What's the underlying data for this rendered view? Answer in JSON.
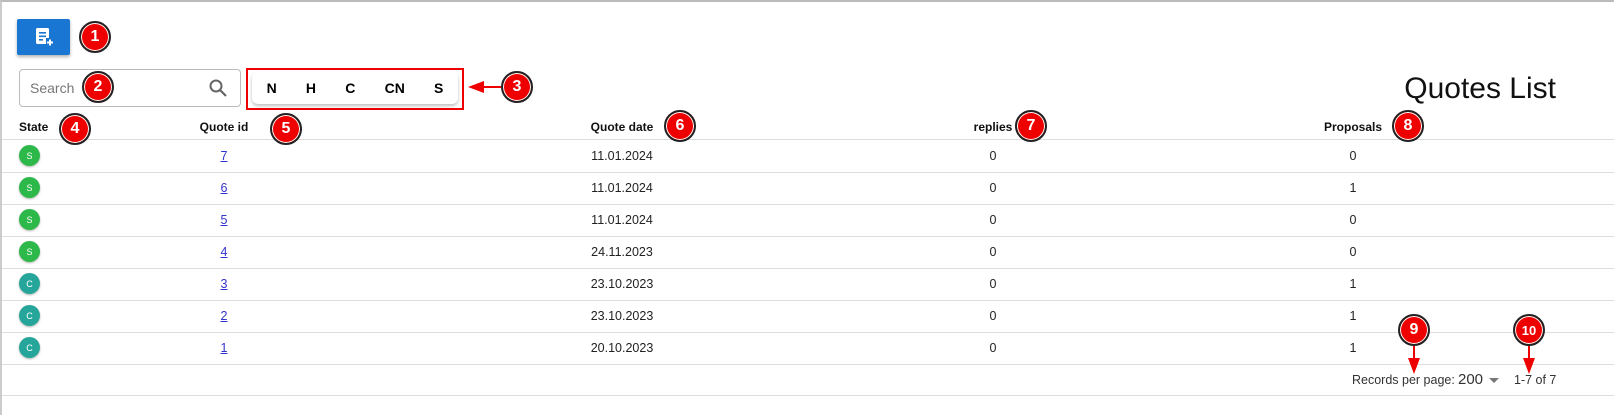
{
  "toolbar": {
    "add_icon": "note-add-icon"
  },
  "search": {
    "placeholder": "Search",
    "icon": "search-icon"
  },
  "filters": [
    "N",
    "H",
    "C",
    "CN",
    "S"
  ],
  "page_title": "Quotes List",
  "columns": [
    "State",
    "Quote id",
    "Quote date",
    "replies",
    "Proposals"
  ],
  "rows": [
    {
      "state": "S",
      "id": "7",
      "date": "11.01.2024",
      "replies": "0",
      "proposals": "0"
    },
    {
      "state": "S",
      "id": "6",
      "date": "11.01.2024",
      "replies": "0",
      "proposals": "1"
    },
    {
      "state": "S",
      "id": "5",
      "date": "11.01.2024",
      "replies": "0",
      "proposals": "0"
    },
    {
      "state": "S",
      "id": "4",
      "date": "24.11.2023",
      "replies": "0",
      "proposals": "0"
    },
    {
      "state": "C",
      "id": "3",
      "date": "23.10.2023",
      "replies": "0",
      "proposals": "1"
    },
    {
      "state": "C",
      "id": "2",
      "date": "23.10.2023",
      "replies": "0",
      "proposals": "1"
    },
    {
      "state": "C",
      "id": "1",
      "date": "20.10.2023",
      "replies": "0",
      "proposals": "1"
    }
  ],
  "state_colors": {
    "S": "#2db84a",
    "C": "#26a69a"
  },
  "footer": {
    "records_label": "Records per page:",
    "records_value": "200",
    "range": "1-7 of 7"
  },
  "callouts": [
    "1",
    "2",
    "3",
    "4",
    "5",
    "6",
    "7",
    "8",
    "9",
    "10"
  ],
  "colors": {
    "primary": "#1976d2",
    "callout": "#ee0000"
  }
}
